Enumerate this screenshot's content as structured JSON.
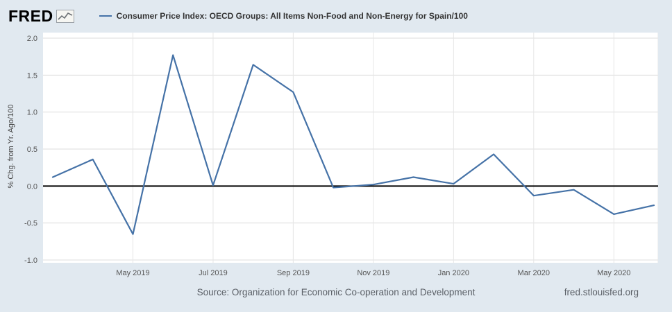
{
  "header": {
    "logo": "FRED",
    "legend_series_label": "Consumer Price Index: OECD Groups: All Items Non-Food and Non-Energy for Spain/100"
  },
  "footer": {
    "source": "Source: Organization for Economic Co-operation and Development",
    "site": "fred.stlouisfed.org"
  },
  "colors": {
    "background": "#e1e9f0",
    "plot_background": "#ffffff",
    "accent": "#4572a7",
    "zero_line": "#000000",
    "gridline": "#dcdcdc"
  },
  "chart_data": {
    "type": "line",
    "title": "Consumer Price Index: OECD Groups: All Items Non-Food and Non-Energy for Spain/100",
    "xlabel": "",
    "ylabel": "% Chg. from Yr. Ago/100",
    "ylim": [
      -1.0,
      2.0
    ],
    "y_ticks": [
      2.0,
      1.5,
      1.0,
      0.5,
      0.0,
      -0.5,
      -1.0
    ],
    "x": [
      "Mar 2019",
      "Apr 2019",
      "May 2019",
      "Jun 2019",
      "Jul 2019",
      "Aug 2019",
      "Sep 2019",
      "Oct 2019",
      "Nov 2019",
      "Dec 2019",
      "Jan 2020",
      "Feb 2020",
      "Mar 2020",
      "Apr 2020",
      "May 2020",
      "Jun 2020"
    ],
    "x_tick_labels": [
      "May 2019",
      "Jul 2019",
      "Sep 2019",
      "Nov 2019",
      "Jan 2020",
      "Mar 2020",
      "May 2020"
    ],
    "series": [
      {
        "name": "Consumer Price Index: OECD Groups: All Items Non-Food and Non-Energy for Spain/100",
        "values": [
          0.12,
          0.36,
          -0.65,
          1.77,
          0.01,
          1.64,
          1.27,
          -0.02,
          0.02,
          0.12,
          0.03,
          0.43,
          -0.13,
          -0.05,
          -0.38,
          -0.26
        ]
      }
    ],
    "line_color": "#4572a7",
    "grid": true,
    "legend_position": "top"
  }
}
